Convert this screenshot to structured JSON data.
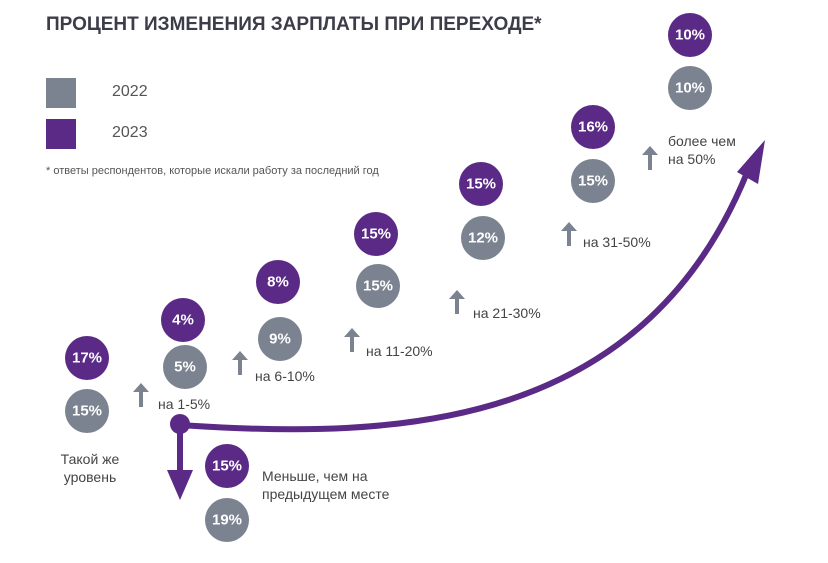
{
  "chart_data": {
    "type": "staircase",
    "title": "ПРОЦЕНТ ИЗМЕНЕНИЯ ЗАРПЛАТЫ ПРИ ПЕРЕХОДЕ*",
    "note": "* ответы респондентов, которые искали работу за последний год",
    "categories": [
      "Такой же уровень",
      "на 1-5%",
      "на 6-10%",
      "на 11-20%",
      "на 21-30%",
      "на 31-50%",
      "более чем на 50%",
      "Меньше, чем на предыдущем месте"
    ],
    "series": [
      {
        "name": "2022",
        "color": "#7b8290",
        "values": [
          15,
          5,
          9,
          15,
          12,
          15,
          10,
          19
        ],
        "value_labels": [
          "15%",
          "5%",
          "9%",
          "15%",
          "12%",
          "15%",
          "10%",
          "19%"
        ]
      },
      {
        "name": "2023",
        "color": "#5a2a86",
        "values": [
          17,
          4,
          8,
          15,
          15,
          16,
          10,
          15
        ],
        "value_labels": [
          "17%",
          "4%",
          "8%",
          "15%",
          "15%",
          "16%",
          "10%",
          "15%"
        ]
      }
    ]
  }
}
